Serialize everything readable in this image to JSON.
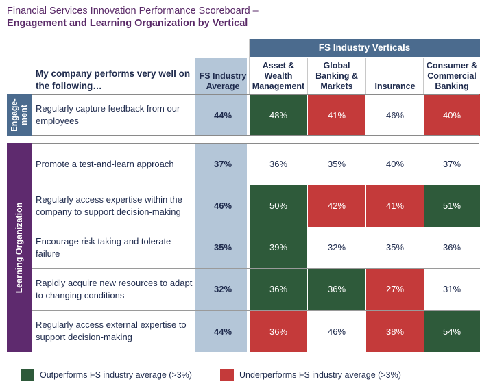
{
  "title_line1": "Financial Services Innovation Performance Scoreboard –",
  "title_line2": "Engagement and Learning Organization by Vertical",
  "verticals_header": "FS Industry Verticals",
  "statement_header": "My company performs very well on the following…",
  "columns": [
    "FS Industry Average",
    "Asset & Wealth Management",
    "Global Banking & Markets",
    "Insurance",
    "Consumer & Commercial Banking"
  ],
  "groups": [
    {
      "label": "Engage-ment",
      "color": "#4b6b8e"
    },
    {
      "label": "Learning Organization",
      "color": "#5e2a6e"
    }
  ],
  "colors": {
    "outperforms": "#2e5a3a",
    "underperforms": "#c43a3a",
    "average_column": "#b4c6d8"
  },
  "chart_data": {
    "type": "table",
    "title": "Financial Services Innovation Performance Scoreboard – Engagement and Learning Organization by Vertical",
    "rows": [
      {
        "group": "Engage-ment",
        "statement": "Regularly capture feedback from our employees",
        "values": [
          "44%",
          "48%",
          "41%",
          "46%",
          "40%"
        ],
        "status": [
          "avg",
          "out",
          "under",
          "none",
          "under"
        ]
      },
      {
        "group": "Learning Organization",
        "statement": "Promote a test-and-learn approach",
        "values": [
          "37%",
          "36%",
          "35%",
          "40%",
          "37%"
        ],
        "status": [
          "avg",
          "none",
          "none",
          "none",
          "none"
        ]
      },
      {
        "group": "Learning Organization",
        "statement": "Regularly access expertise within the company to support decision-making",
        "values": [
          "46%",
          "50%",
          "42%",
          "41%",
          "51%"
        ],
        "status": [
          "avg",
          "out",
          "under",
          "under",
          "out"
        ]
      },
      {
        "group": "Learning Organization",
        "statement": "Encourage risk taking and tolerate failure",
        "values": [
          "35%",
          "39%",
          "32%",
          "35%",
          "36%"
        ],
        "status": [
          "avg",
          "out",
          "none",
          "none",
          "none"
        ]
      },
      {
        "group": "Learning Organization",
        "statement": "Rapidly acquire new resources to adapt to changing conditions",
        "values": [
          "32%",
          "36%",
          "36%",
          "27%",
          "31%"
        ],
        "status": [
          "avg",
          "out",
          "out",
          "under",
          "none"
        ]
      },
      {
        "group": "Learning Organization",
        "statement": "Regularly access external expertise to support decision-making",
        "values": [
          "44%",
          "36%",
          "46%",
          "38%",
          "54%"
        ],
        "status": [
          "avg",
          "under",
          "none",
          "under",
          "out"
        ]
      }
    ],
    "legend": [
      "Outperforms FS industry average (>3%)",
      "Underperforms FS industry average (>3%)"
    ]
  }
}
